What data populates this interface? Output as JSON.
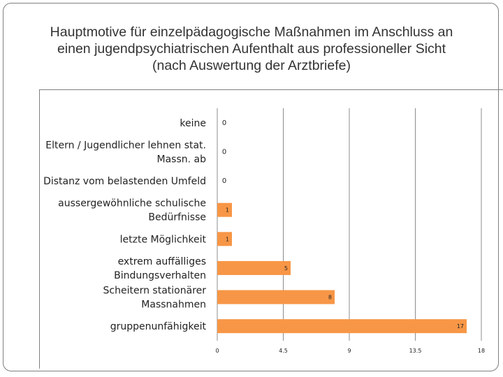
{
  "title_lines": [
    "Hauptmotive für einzelpädagogische Maßnahmen im Anschluss an",
    "einen jugendpsychiatrischen Aufenthalt aus professioneller Sicht",
    "(nach Auswertung der Arztbriefe)"
  ],
  "chart_data": {
    "type": "bar",
    "orientation": "horizontal",
    "title": "Hauptmotive für einzelpädagogische Maßnahmen im Anschluss an einen jugendpsychiatrischen Aufenthalt aus professioneller Sicht (nach Auswertung der Arztbriefe)",
    "categories": [
      [
        "keine"
      ],
      [
        "Eltern / Jugendlicher lehnen stat.",
        "Massn. ab"
      ],
      [
        "Distanz vom belastenden Umfeld"
      ],
      [
        "aussergewöhnliche schulische",
        "Bedürfnisse"
      ],
      [
        "letzte Möglichkeit"
      ],
      [
        "extrem auffälliges",
        "Bindungsverhalten"
      ],
      [
        "Scheitern stationärer",
        "Massnahmen"
      ],
      [
        "gruppenunfähigkeit"
      ]
    ],
    "values": [
      0,
      0,
      0,
      1,
      1,
      5,
      8,
      17
    ],
    "xlim": [
      0,
      18
    ],
    "xticks": [
      "0",
      "4.5",
      "9",
      "13.5",
      "18"
    ],
    "bar_color": "#f79646",
    "grid": "vertical",
    "legend": "none"
  }
}
